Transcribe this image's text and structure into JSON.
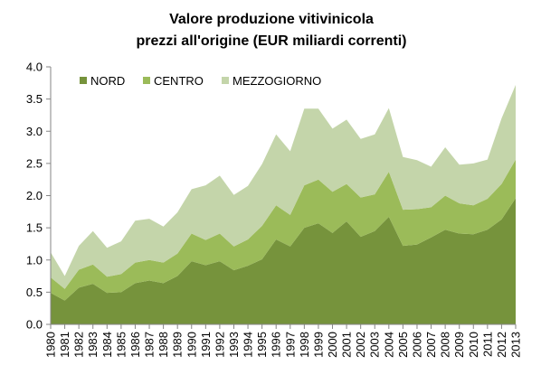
{
  "chart_data": {
    "type": "area",
    "stacked": true,
    "title_lines": [
      "Valore produzione vitivinicola",
      "prezzi all'origine  (EUR miliardi correnti)"
    ],
    "x": [
      "1980",
      "1981",
      "1982",
      "1983",
      "1984",
      "1985",
      "1986",
      "1987",
      "1988",
      "1989",
      "1990",
      "1991",
      "1992",
      "1993",
      "1994",
      "1995",
      "1996",
      "1997",
      "1998",
      "1999",
      "2000",
      "2001",
      "2002",
      "2003",
      "2004",
      "2005",
      "2006",
      "2007",
      "2008",
      "2009",
      "2010",
      "2011",
      "2012",
      "2013"
    ],
    "ylim": [
      0,
      4.0
    ],
    "yticks": [
      "0.0",
      "0.5",
      "1.0",
      "1.5",
      "2.0",
      "2.5",
      "3.0",
      "3.5",
      "4.0"
    ],
    "grid": false,
    "legend_position": "top-left",
    "series": [
      {
        "name": "NORD",
        "color": "#76933c",
        "values": [
          0.49,
          0.37,
          0.57,
          0.63,
          0.49,
          0.5,
          0.64,
          0.68,
          0.64,
          0.75,
          0.98,
          0.92,
          0.98,
          0.84,
          0.91,
          1.01,
          1.32,
          1.21,
          1.5,
          1.57,
          1.42,
          1.6,
          1.36,
          1.45,
          1.67,
          1.22,
          1.24,
          1.35,
          1.47,
          1.41,
          1.4,
          1.47,
          1.63,
          1.96
        ]
      },
      {
        "name": "CENTRO",
        "color": "#9bbb59",
        "values": [
          0.24,
          0.18,
          0.28,
          0.3,
          0.25,
          0.28,
          0.32,
          0.32,
          0.32,
          0.35,
          0.43,
          0.39,
          0.43,
          0.37,
          0.41,
          0.52,
          0.53,
          0.49,
          0.66,
          0.68,
          0.64,
          0.58,
          0.61,
          0.57,
          0.7,
          0.56,
          0.55,
          0.47,
          0.53,
          0.47,
          0.45,
          0.48,
          0.55,
          0.6
        ]
      },
      {
        "name": "MEZZOGIORNO",
        "color": "#c4d5aa",
        "values": [
          0.39,
          0.2,
          0.37,
          0.52,
          0.45,
          0.51,
          0.65,
          0.64,
          0.56,
          0.64,
          0.69,
          0.85,
          0.9,
          0.8,
          0.83,
          0.96,
          1.1,
          0.99,
          1.19,
          1.1,
          0.98,
          1.0,
          0.91,
          0.93,
          0.99,
          0.82,
          0.76,
          0.63,
          0.75,
          0.6,
          0.65,
          0.61,
          1.02,
          1.16
        ]
      }
    ]
  }
}
